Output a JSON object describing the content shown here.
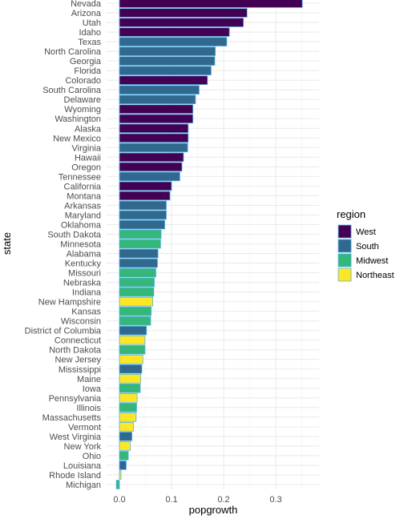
{
  "chart_data": {
    "type": "bar",
    "orientation": "horizontal",
    "xlabel": "popgrowth",
    "ylabel": "state",
    "xlim": [
      -0.007,
      0.36
    ],
    "xticks": [
      0.0,
      0.1,
      0.2,
      0.3
    ],
    "xtick_labels": [
      "0.0",
      "0.1",
      "0.2",
      "0.3"
    ],
    "grid": true,
    "legend": {
      "title": "region",
      "position": "right",
      "entries": [
        {
          "label": "West",
          "color": "#440154"
        },
        {
          "label": "South",
          "color": "#31688e"
        },
        {
          "label": "Midwest",
          "color": "#35b779"
        },
        {
          "label": "Northeast",
          "color": "#fde725"
        }
      ]
    },
    "categories": [
      "Nevada",
      "Arizona",
      "Utah",
      "Idaho",
      "Texas",
      "North Carolina",
      "Georgia",
      "Florida",
      "Colorado",
      "South Carolina",
      "Delaware",
      "Wyoming",
      "Washington",
      "Alaska",
      "New Mexico",
      "Virginia",
      "Hawaii",
      "Oregon",
      "Tennessee",
      "California",
      "Montana",
      "Arkansas",
      "Maryland",
      "Oklahoma",
      "South Dakota",
      "Minnesota",
      "Alabama",
      "Kentucky",
      "Missouri",
      "Nebraska",
      "Indiana",
      "New Hampshire",
      "Kansas",
      "Wisconsin",
      "District of Columbia",
      "Connecticut",
      "North Dakota",
      "New Jersey",
      "Mississippi",
      "Maine",
      "Iowa",
      "Pennsylvania",
      "Illinois",
      "Massachusetts",
      "Vermont",
      "West Virginia",
      "New York",
      "Ohio",
      "Louisiana",
      "Rhode Island",
      "Michigan"
    ],
    "values": [
      0.351,
      0.245,
      0.238,
      0.211,
      0.206,
      0.184,
      0.183,
      0.176,
      0.169,
      0.153,
      0.146,
      0.141,
      0.141,
      0.132,
      0.132,
      0.131,
      0.123,
      0.12,
      0.116,
      0.1,
      0.097,
      0.09,
      0.09,
      0.087,
      0.08,
      0.079,
      0.074,
      0.073,
      0.07,
      0.067,
      0.066,
      0.064,
      0.061,
      0.06,
      0.052,
      0.049,
      0.049,
      0.045,
      0.043,
      0.041,
      0.04,
      0.034,
      0.033,
      0.032,
      0.027,
      0.024,
      0.021,
      0.017,
      0.013,
      0.003,
      -0.006
    ],
    "regions": [
      "West",
      "West",
      "West",
      "West",
      "South",
      "South",
      "South",
      "South",
      "West",
      "South",
      "South",
      "West",
      "West",
      "West",
      "West",
      "South",
      "West",
      "West",
      "South",
      "West",
      "West",
      "South",
      "South",
      "South",
      "Midwest",
      "Midwest",
      "South",
      "South",
      "Midwest",
      "Midwest",
      "Midwest",
      "Northeast",
      "Midwest",
      "Midwest",
      "South",
      "Northeast",
      "Midwest",
      "Northeast",
      "South",
      "Northeast",
      "Midwest",
      "Northeast",
      "Midwest",
      "Northeast",
      "Northeast",
      "South",
      "Northeast",
      "Midwest",
      "South",
      "Northeast",
      "Midwest"
    ]
  }
}
